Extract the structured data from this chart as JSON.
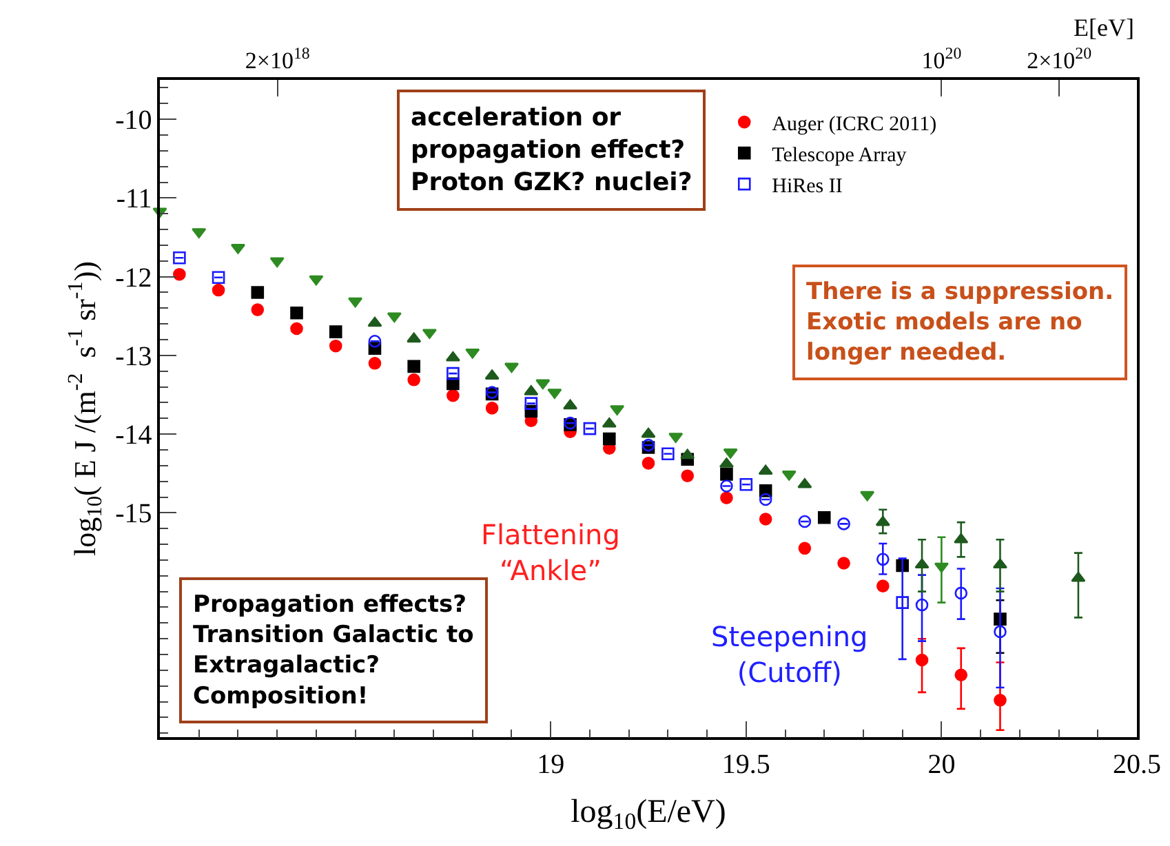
{
  "chart_data": {
    "type": "scatter",
    "xlabel": "log$_{10}$(E/eV)",
    "ylabel": "log$_{10}$( E J /(m$^{-2}$  s$^{-1}$ sr$^{-1}$))",
    "x2label": "E[eV]",
    "xlim": [
      18,
      20.5
    ],
    "xticks": [
      19,
      19.5,
      20,
      20.5
    ],
    "x2lim": [
      1e+18,
      3.162e+20
    ],
    "x2ticks": [
      {
        "value": 2e+18,
        "label": "2×10$^{18}$"
      },
      {
        "value": 1e+20,
        "label": "10$^{20}$"
      },
      {
        "value": 2e+20,
        "label": "2×10$^{20}$"
      }
    ],
    "log": "x2",
    "ylim": [
      -17.85,
      -9.5
    ],
    "yticks": [
      -10,
      -11,
      -12,
      -13,
      -14,
      -15
    ],
    "legend": "top right",
    "series": [
      {
        "name": "Auger (ICRC 2011)",
        "color": "#ff0000",
        "marker": "circle",
        "x": [
          18.05,
          18.15,
          18.25,
          18.35,
          18.45,
          18.55,
          18.65,
          18.75,
          18.85,
          18.95,
          19.05,
          19.15,
          19.25,
          19.35,
          19.45,
          19.55,
          19.65,
          19.75,
          19.85,
          19.95,
          20.05,
          20.15
        ],
        "values": [
          -11.97,
          -12.17,
          -12.42,
          -12.66,
          -12.88,
          -13.1,
          -13.31,
          -13.51,
          -13.67,
          -13.83,
          -13.97,
          -14.18,
          -14.37,
          -14.53,
          -14.81,
          -15.08,
          -15.45,
          -15.64,
          -15.93,
          -16.87,
          -17.06,
          -17.38
        ],
        "errors": [
          null,
          null,
          null,
          null,
          null,
          null,
          null,
          null,
          null,
          null,
          null,
          null,
          null,
          null,
          null,
          null,
          null,
          null,
          null,
          [
            -17.28,
            -16.6
          ],
          [
            -17.49,
            -16.72
          ],
          [
            -17.76,
            -16.9
          ]
        ]
      },
      {
        "name": "Telescope Array",
        "color": "#000000",
        "marker": "square",
        "x": [
          18.25,
          18.35,
          18.45,
          18.55,
          18.65,
          18.75,
          18.85,
          18.95,
          19.05,
          19.15,
          19.25,
          19.35,
          19.45,
          19.55,
          19.7,
          19.9,
          20.15
        ],
        "values": [
          -12.2,
          -12.46,
          -12.7,
          -12.91,
          -13.14,
          -13.36,
          -13.49,
          -13.71,
          -13.88,
          -14.06,
          -14.17,
          -14.32,
          -14.51,
          -14.72,
          -15.06,
          -15.67,
          -16.35
        ],
        "errors": [
          null,
          null,
          null,
          null,
          null,
          null,
          null,
          null,
          null,
          null,
          null,
          null,
          null,
          null,
          null,
          null,
          [
            -16.78,
            -16.11
          ]
        ]
      },
      {
        "name": "HiRes II",
        "color": "#1a1aff",
        "marker": "square-open",
        "x": [
          18.05,
          18.15,
          18.75,
          18.95,
          19.1,
          19.3,
          19.5,
          19.9
        ],
        "values": [
          -11.76,
          -12.01,
          -13.23,
          -13.61,
          -13.93,
          -14.25,
          -14.64,
          -16.14
        ],
        "errors": [
          null,
          null,
          null,
          null,
          null,
          null,
          null,
          [
            -16.86,
            -15.58
          ]
        ]
      },
      {
        "color": "#1a1aff",
        "marker": "circle-open",
        "x": [
          18.55,
          18.85,
          19.05,
          19.25,
          19.45,
          19.55,
          19.65,
          19.75,
          19.85,
          19.95,
          20.05,
          20.15
        ],
        "values": [
          -12.82,
          -13.47,
          -13.86,
          -14.14,
          -14.66,
          -14.83,
          -15.11,
          -15.14,
          -15.59,
          -16.17,
          -16.02,
          -16.51
        ],
        "errors": [
          null,
          null,
          null,
          null,
          null,
          null,
          null,
          null,
          [
            -15.78,
            -15.39
          ],
          [
            -16.63,
            -15.79
          ],
          [
            -16.35,
            -15.71
          ],
          [
            -17.22,
            -15.96
          ]
        ]
      },
      {
        "color": "#2e8b22",
        "marker": "triangle-down",
        "x": [
          18.0,
          18.1,
          18.2,
          18.3,
          18.4,
          18.5,
          18.6,
          18.69,
          18.8,
          18.9,
          18.98,
          19.01,
          19.17,
          19.32,
          19.46,
          19.61,
          19.81,
          20.0
        ],
        "values": [
          -11.17,
          -11.43,
          -11.63,
          -11.8,
          -12.03,
          -12.31,
          -12.5,
          -12.71,
          -12.96,
          -13.14,
          -13.35,
          -13.47,
          -13.68,
          -14.03,
          -14.23,
          -14.51,
          -14.77,
          -15.68
        ],
        "errors": [
          null,
          null,
          null,
          null,
          null,
          null,
          null,
          null,
          null,
          null,
          null,
          null,
          null,
          null,
          null,
          null,
          null,
          [
            -16.14,
            -15.31
          ]
        ]
      },
      {
        "color": "#1e5a1e",
        "marker": "triangle",
        "x": [
          18.55,
          18.65,
          18.75,
          18.85,
          18.95,
          19.05,
          19.15,
          19.25,
          19.35,
          19.45,
          19.55,
          19.65,
          19.85,
          19.95,
          20.05,
          20.15,
          20.35
        ],
        "values": [
          -12.59,
          -12.79,
          -13.03,
          -13.26,
          -13.46,
          -13.64,
          -13.87,
          -14.0,
          -14.27,
          -14.38,
          -14.47,
          -14.64,
          -15.12,
          -15.66,
          -15.34,
          -15.66,
          -15.83
        ],
        "errors": [
          null,
          null,
          null,
          null,
          null,
          null,
          null,
          null,
          null,
          null,
          null,
          null,
          [
            -15.26,
            -14.96
          ],
          [
            -16.0,
            -15.34
          ],
          [
            -15.56,
            -15.12
          ],
          [
            -16.0,
            -15.34
          ],
          [
            -16.33,
            -15.51
          ]
        ]
      }
    ],
    "annotations": [
      "acceleration or\npropagation effect?\nProton GZK? nuclei?",
      "Flattening\n“Ankle”",
      "Steepening\n(Cutoff)",
      "Propagation effects?\nTransition Galactic to\nExtragalactic?\nComposition!",
      "There is a suppression.\nExotic models are no\nlonger needed."
    ]
  }
}
